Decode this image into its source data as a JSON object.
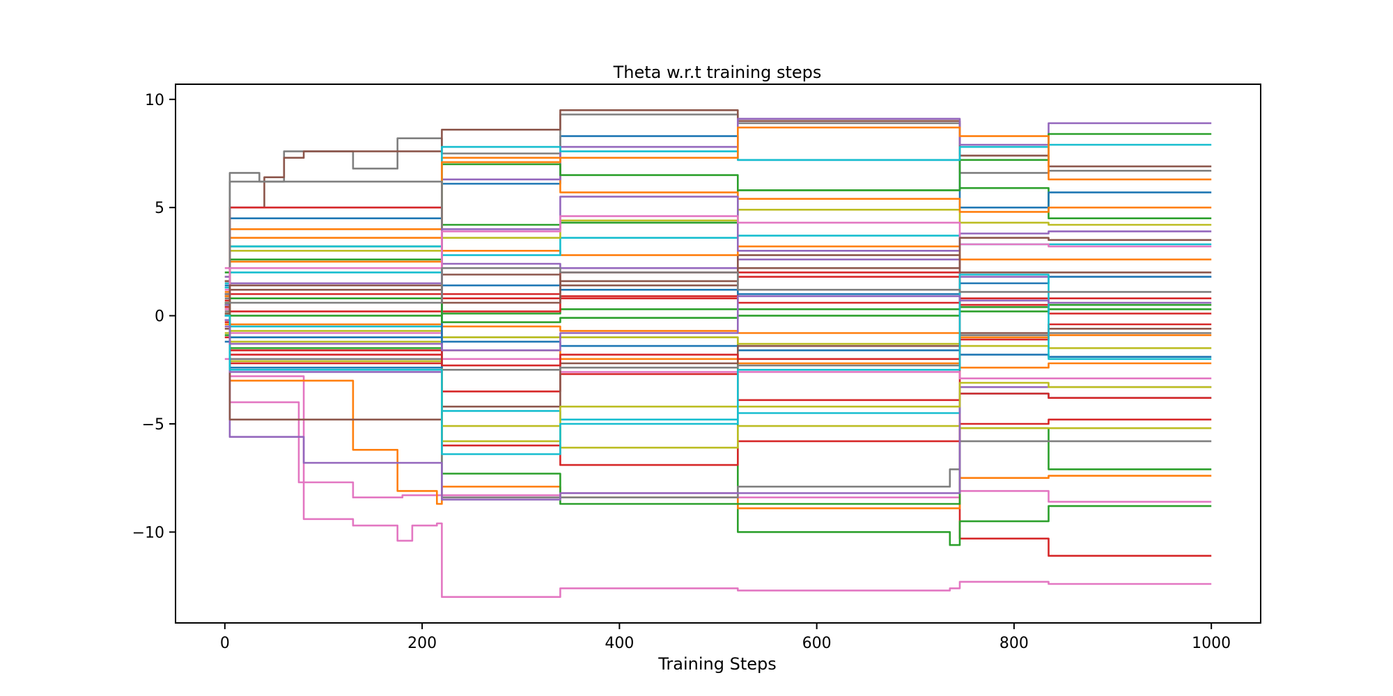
{
  "chart_data": {
    "type": "line",
    "title": "Theta w.r.t training steps",
    "xlabel": "Training Steps",
    "ylabel": "",
    "xlim": [
      -50,
      1050
    ],
    "ylim": [
      -14.2,
      10.7
    ],
    "xticks": [
      0,
      200,
      400,
      600,
      800,
      1000
    ],
    "yticks": [
      10,
      5,
      0,
      -5,
      -10
    ],
    "ytick_labels": [
      "10",
      "5",
      "0",
      "−5",
      "−10"
    ],
    "grid": false,
    "legend": "none",
    "colors": [
      "#1f77b4",
      "#ff7f0e",
      "#2ca02c",
      "#d62728",
      "#9467bd",
      "#8c564b",
      "#e377c2",
      "#7f7f7f",
      "#bcbd22",
      "#17becf"
    ],
    "series": [
      {
        "color": "#e377c2",
        "x": [
          0,
          5,
          80,
          130,
          175,
          190,
          215,
          220,
          340,
          520,
          735,
          745,
          835,
          1000
        ],
        "y": [
          2.2,
          -2.8,
          -9.4,
          -9.7,
          -10.4,
          -9.7,
          -9.6,
          -13.0,
          -12.6,
          -12.7,
          -12.6,
          -12.3,
          -12.4,
          -12.4
        ]
      },
      {
        "color": "#d62728",
        "x": [
          0,
          5,
          340,
          520,
          735,
          745,
          835,
          1000
        ],
        "y": [
          0.0,
          1.0,
          2.0,
          2.0,
          2.0,
          -10.3,
          -11.1,
          -11.1
        ]
      },
      {
        "color": "#2ca02c",
        "x": [
          0,
          5,
          520,
          735,
          745,
          835,
          1000
        ],
        "y": [
          0.5,
          -1.0,
          -10.0,
          -10.6,
          -9.5,
          -8.8,
          -8.8
        ]
      },
      {
        "color": "#e377c2",
        "x": [
          0,
          5,
          75,
          130,
          180,
          215,
          340,
          520,
          735,
          745,
          835,
          1000
        ],
        "y": [
          -2.0,
          -4.0,
          -7.7,
          -8.4,
          -8.3,
          -8.3,
          -8.2,
          -8.4,
          -8.4,
          -8.1,
          -8.6,
          -8.6
        ]
      },
      {
        "color": "#ff7f0e",
        "x": [
          0,
          5,
          130,
          175,
          215,
          220,
          340,
          520,
          735,
          745,
          835,
          1000
        ],
        "y": [
          1.0,
          -3.0,
          -6.2,
          -8.1,
          -8.7,
          -7.9,
          -8.4,
          -8.9,
          -8.9,
          -7.5,
          -7.4,
          -7.4
        ]
      },
      {
        "color": "#2ca02c",
        "x": [
          0,
          5,
          220,
          340,
          520,
          735,
          745,
          835,
          1000
        ],
        "y": [
          0.5,
          -1.5,
          -7.3,
          -8.7,
          -8.7,
          -8.7,
          -5.2,
          -7.1,
          -7.1
        ]
      },
      {
        "color": "#7f7f7f",
        "x": [
          0,
          5,
          220,
          340,
          520,
          735,
          745,
          835,
          1000
        ],
        "y": [
          0.8,
          -2.0,
          -8.4,
          -8.4,
          -7.9,
          -7.1,
          -5.8,
          -5.8,
          -5.8
        ]
      },
      {
        "color": "#d62728",
        "x": [
          0,
          5,
          220,
          340,
          520,
          735,
          745,
          835,
          1000
        ],
        "y": [
          -0.2,
          -1.8,
          -6.0,
          -6.9,
          -5.8,
          -5.8,
          -5.0,
          -4.8,
          -4.8
        ]
      },
      {
        "color": "#bcbd22",
        "x": [
          0,
          5,
          220,
          340,
          520,
          735,
          745,
          835,
          1000
        ],
        "y": [
          0.3,
          -1.2,
          -5.1,
          -6.1,
          -5.1,
          -5.1,
          -5.2,
          -5.2,
          -5.2
        ]
      },
      {
        "color": "#17becf",
        "x": [
          0,
          5,
          220,
          340,
          520,
          735,
          745,
          835,
          1000
        ],
        "y": [
          1.3,
          -0.5,
          -4.4,
          -4.8,
          -4.5,
          -4.5,
          -3.6,
          -3.8,
          -3.8
        ]
      },
      {
        "color": "#d62728",
        "x": [
          0,
          5,
          220,
          340,
          520,
          735,
          745,
          835,
          1000
        ],
        "y": [
          -1.0,
          -2.2,
          -3.5,
          -2.7,
          -3.9,
          -3.9,
          -3.6,
          -3.8,
          -3.8
        ]
      },
      {
        "color": "#9467bd",
        "x": [
          0,
          5,
          80,
          220,
          340,
          520,
          735,
          745,
          835,
          1000
        ],
        "y": [
          0.5,
          -5.6,
          -6.8,
          -8.5,
          -8.2,
          -8.2,
          -8.2,
          -3.3,
          -3.3,
          -3.3
        ]
      },
      {
        "color": "#e377c2",
        "x": [
          0,
          5,
          220,
          340,
          520,
          735,
          745,
          835,
          1000
        ],
        "y": [
          1.2,
          -0.8,
          -2.0,
          -2.6,
          -2.6,
          -2.6,
          -2.9,
          -2.9,
          -2.9
        ]
      },
      {
        "color": "#ff7f0e",
        "x": [
          0,
          5,
          220,
          340,
          520,
          735,
          745,
          835,
          1000
        ],
        "y": [
          -0.4,
          -1.6,
          -1.6,
          -2.0,
          -2.2,
          -2.2,
          -2.4,
          -2.2,
          -2.2
        ]
      },
      {
        "color": "#1f77b4",
        "x": [
          0,
          5,
          220,
          340,
          520,
          735,
          745,
          835,
          1000
        ],
        "y": [
          0.0,
          -1.0,
          -1.2,
          -1.4,
          -1.6,
          -1.6,
          -1.8,
          -1.9,
          -1.9
        ]
      },
      {
        "color": "#bcbd22",
        "x": [
          0,
          5,
          220,
          340,
          520,
          735,
          745,
          835,
          1000
        ],
        "y": [
          0.1,
          -0.7,
          -1.0,
          -1.0,
          -1.3,
          -1.3,
          -1.4,
          -1.5,
          -1.5
        ]
      },
      {
        "color": "#ff7f0e",
        "x": [
          0,
          5,
          220,
          340,
          520,
          735,
          745,
          835,
          1000
        ],
        "y": [
          0.6,
          -0.4,
          -0.5,
          -0.7,
          -0.8,
          -0.8,
          -1.0,
          -0.9,
          -0.9
        ]
      },
      {
        "color": "#2ca02c",
        "x": [
          0,
          5,
          220,
          340,
          520,
          735,
          745,
          835,
          1000
        ],
        "y": [
          0.4,
          0.0,
          0.1,
          0.3,
          0.3,
          0.3,
          0.4,
          0.5,
          0.5
        ]
      },
      {
        "color": "#d62728",
        "x": [
          0,
          5,
          220,
          340,
          520,
          735,
          745,
          835,
          1000
        ],
        "y": [
          0.7,
          0.2,
          0.8,
          0.8,
          0.6,
          0.6,
          0.8,
          0.8,
          0.8
        ]
      },
      {
        "color": "#9467bd",
        "x": [
          0,
          5,
          220,
          340,
          520,
          735,
          745,
          835,
          1000
        ],
        "y": [
          1.0,
          1.5,
          2.4,
          2.2,
          2.6,
          2.6,
          1.8,
          1.8,
          1.8
        ]
      },
      {
        "color": "#8c564b",
        "x": [
          0,
          5,
          220,
          340,
          520,
          735,
          745,
          835,
          1000
        ],
        "y": [
          0.9,
          1.2,
          1.9,
          1.4,
          2.8,
          2.8,
          2.0,
          2.0,
          2.0
        ]
      },
      {
        "color": "#ff7f0e",
        "x": [
          0,
          5,
          220,
          340,
          520,
          735,
          745,
          835,
          1000
        ],
        "y": [
          1.6,
          2.5,
          3.0,
          2.8,
          3.2,
          3.2,
          2.6,
          2.6,
          2.6
        ]
      },
      {
        "color": "#17becf",
        "x": [
          0,
          5,
          220,
          340,
          520,
          735,
          745,
          835,
          1000
        ],
        "y": [
          1.5,
          2.0,
          2.8,
          3.6,
          3.7,
          3.7,
          3.3,
          3.3,
          3.3
        ]
      },
      {
        "color": "#bcbd22",
        "x": [
          0,
          5,
          220,
          340,
          520,
          735,
          745,
          835,
          1000
        ],
        "y": [
          1.8,
          3.0,
          3.6,
          4.4,
          4.9,
          4.9,
          4.3,
          4.2,
          4.2
        ]
      },
      {
        "color": "#2ca02c",
        "x": [
          0,
          5,
          220,
          340,
          520,
          735,
          745,
          835,
          1000
        ],
        "y": [
          2.0,
          3.2,
          4.2,
          4.3,
          5.8,
          5.8,
          5.9,
          4.5,
          4.5
        ]
      },
      {
        "color": "#1f77b4",
        "x": [
          0,
          5,
          220,
          340,
          520,
          735,
          745,
          835,
          1000
        ],
        "y": [
          1.4,
          4.5,
          6.1,
          8.3,
          7.2,
          7.2,
          5.0,
          5.7,
          5.7
        ]
      },
      {
        "color": "#ff7f0e",
        "x": [
          0,
          5,
          220,
          340,
          520,
          735,
          745,
          835,
          1000
        ],
        "y": [
          1.1,
          4.0,
          7.3,
          5.7,
          5.4,
          5.4,
          4.8,
          5.0,
          5.0
        ]
      },
      {
        "color": "#7f7f7f",
        "x": [
          0,
          5,
          35,
          60,
          75,
          130,
          175,
          215,
          220,
          340,
          520,
          735,
          745,
          835,
          1000
        ],
        "y": [
          1.0,
          6.6,
          6.2,
          7.6,
          7.6,
          6.8,
          8.2,
          8.2,
          7.5,
          9.3,
          8.9,
          8.9,
          6.6,
          6.7,
          6.7
        ]
      },
      {
        "color": "#8c564b",
        "x": [
          0,
          5,
          40,
          60,
          80,
          220,
          340,
          520,
          735,
          745,
          835,
          1000
        ],
        "y": [
          1.6,
          5.0,
          6.4,
          7.3,
          7.6,
          8.6,
          9.5,
          9.0,
          9.0,
          7.4,
          6.9,
          6.9
        ]
      },
      {
        "color": "#9467bd",
        "x": [
          0,
          5,
          220,
          340,
          520,
          735,
          745,
          835,
          1000
        ],
        "y": [
          1.8,
          5.0,
          6.3,
          7.8,
          9.1,
          9.1,
          7.9,
          8.9,
          8.9
        ]
      },
      {
        "color": "#2ca02c",
        "x": [
          0,
          5,
          220,
          340,
          520,
          735,
          745,
          835,
          1000
        ],
        "y": [
          0.6,
          2.6,
          7.0,
          6.5,
          5.8,
          5.8,
          7.2,
          8.4,
          8.4
        ]
      },
      {
        "color": "#17becf",
        "x": [
          0,
          5,
          220,
          340,
          520,
          735,
          745,
          835,
          1000
        ],
        "y": [
          1.3,
          3.2,
          7.8,
          7.6,
          7.2,
          7.2,
          7.8,
          7.9,
          7.9
        ]
      },
      {
        "color": "#ff7f0e",
        "x": [
          0,
          5,
          220,
          340,
          520,
          735,
          745,
          835,
          1000
        ],
        "y": [
          0.9,
          3.6,
          7.1,
          7.3,
          8.7,
          8.7,
          8.3,
          6.3,
          6.3
        ]
      },
      {
        "color": "#d62728",
        "x": [
          0,
          5,
          220,
          340,
          520,
          735,
          745,
          835,
          1000
        ],
        "y": [
          0.4,
          5.0,
          0.2,
          0.9,
          1.8,
          1.8,
          0.5,
          0.1,
          0.1
        ]
      },
      {
        "color": "#8c564b",
        "x": [
          0,
          5,
          220,
          340,
          520,
          735,
          745,
          835,
          1000
        ],
        "y": [
          -0.6,
          -4.8,
          -4.2,
          -2.2,
          -1.4,
          -1.4,
          -0.8,
          -0.6,
          -0.6
        ]
      },
      {
        "color": "#7f7f7f",
        "x": [
          0,
          5,
          220,
          340,
          520,
          735,
          745,
          835,
          1000
        ],
        "y": [
          0.2,
          6.2,
          -2.5,
          -2.4,
          -2.3,
          -2.3,
          -0.9,
          -0.8,
          -0.8
        ]
      },
      {
        "color": "#9467bd",
        "x": [
          0,
          5,
          220,
          340,
          520,
          735,
          745,
          835,
          1000
        ],
        "y": [
          -0.2,
          -2.6,
          4.0,
          5.5,
          3.0,
          3.0,
          3.8,
          3.9,
          3.9
        ]
      },
      {
        "color": "#e377c2",
        "x": [
          0,
          5,
          220,
          340,
          520,
          735,
          745,
          835,
          1000
        ],
        "y": [
          0.3,
          2.2,
          3.9,
          4.6,
          4.3,
          4.3,
          3.3,
          3.2,
          3.2
        ]
      },
      {
        "color": "#bcbd22",
        "x": [
          0,
          5,
          220,
          340,
          520,
          735,
          745,
          835,
          1000
        ],
        "y": [
          -0.8,
          -2.1,
          -5.8,
          -4.2,
          -4.2,
          -4.2,
          -3.1,
          -3.3,
          -3.3
        ]
      },
      {
        "color": "#1f77b4",
        "x": [
          0,
          5,
          220,
          340,
          520,
          735,
          745,
          835,
          1000
        ],
        "y": [
          -1.2,
          -2.4,
          1.4,
          1.2,
          1.0,
          1.0,
          1.5,
          1.8,
          1.8
        ]
      },
      {
        "color": "#2ca02c",
        "x": [
          0,
          5,
          220,
          340,
          520,
          735,
          745,
          835,
          1000
        ],
        "y": [
          -0.9,
          0.8,
          -0.3,
          -0.1,
          0.0,
          0.0,
          0.2,
          0.3,
          0.3
        ]
      },
      {
        "color": "#8c564b",
        "x": [
          0,
          5,
          220,
          340,
          520,
          735,
          745,
          835,
          1000
        ],
        "y": [
          0.1,
          1.4,
          0.6,
          1.6,
          2.2,
          2.2,
          3.6,
          3.5,
          3.5
        ]
      },
      {
        "color": "#d62728",
        "x": [
          0,
          5,
          220,
          340,
          520,
          735,
          745,
          835,
          1000
        ],
        "y": [
          -0.3,
          -1.6,
          -2.3,
          -1.8,
          -2.0,
          -2.0,
          -1.1,
          -0.4,
          -0.4
        ]
      },
      {
        "color": "#17becf",
        "x": [
          0,
          5,
          220,
          340,
          520,
          735,
          745,
          835,
          1000
        ],
        "y": [
          0.0,
          -2.5,
          -6.4,
          -5.0,
          -2.5,
          -2.5,
          1.9,
          -2.0,
          -2.0
        ]
      },
      {
        "color": "#7f7f7f",
        "x": [
          0,
          5,
          220,
          340,
          520,
          735,
          745,
          835,
          1000
        ],
        "y": [
          0.6,
          0.6,
          2.2,
          2.0,
          1.2,
          1.2,
          1.1,
          1.1,
          1.1
        ]
      },
      {
        "color": "#9467bd",
        "x": [
          0,
          5,
          220,
          340,
          520,
          735,
          745,
          835,
          1000
        ],
        "y": [
          -0.5,
          -1.3,
          -1.6,
          -0.8,
          0.9,
          0.9,
          0.7,
          0.6,
          0.6
        ]
      }
    ]
  }
}
